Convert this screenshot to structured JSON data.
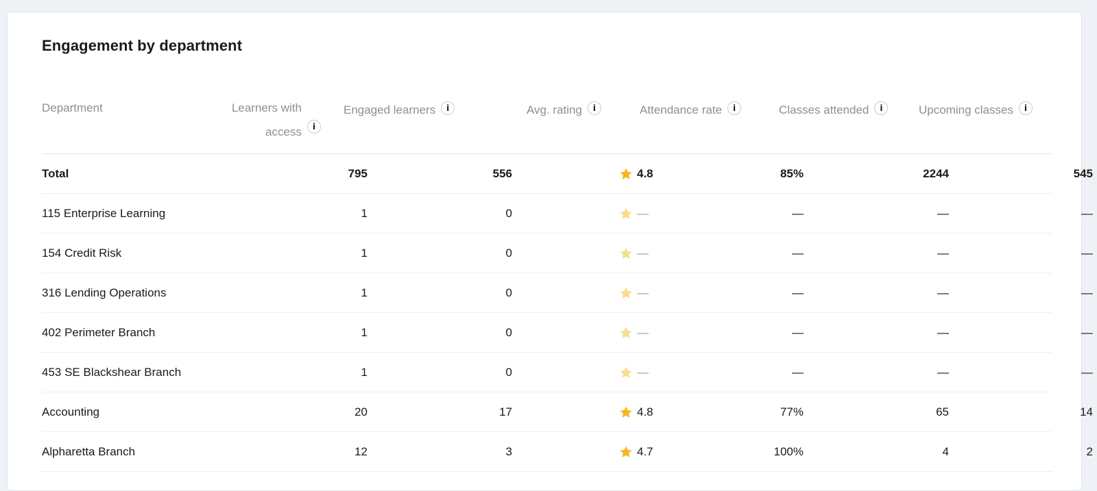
{
  "title": "Engagement by department",
  "columns": {
    "department": "Department",
    "learners_with_access": "Learners with access",
    "engaged_learners": "Engaged learners",
    "avg_rating": "Avg. rating",
    "attendance_rate": "Attendance rate",
    "classes_attended": "Classes attended",
    "upcoming_classes": "Upcoming classes"
  },
  "info_glyph": "i",
  "colors": {
    "star_full": "#f5b823",
    "star_faint": "#f8dc8f",
    "header_text": "#8b8f95"
  },
  "rows": [
    {
      "department": "Total",
      "learners": "795",
      "engaged": "556",
      "rating": "4.8",
      "rated": true,
      "attendance": "85%",
      "classes": "2244",
      "upcoming": "545",
      "total": true
    },
    {
      "department": "115 Enterprise Learning",
      "learners": "1",
      "engaged": "0",
      "rating": "—",
      "rated": false,
      "attendance": "—",
      "classes": "—",
      "upcoming": "—"
    },
    {
      "department": "154 Credit Risk",
      "learners": "1",
      "engaged": "0",
      "rating": "—",
      "rated": false,
      "attendance": "—",
      "classes": "—",
      "upcoming": "—"
    },
    {
      "department": "316 Lending Operations",
      "learners": "1",
      "engaged": "0",
      "rating": "—",
      "rated": false,
      "attendance": "—",
      "classes": "—",
      "upcoming": "—"
    },
    {
      "department": "402 Perimeter Branch",
      "learners": "1",
      "engaged": "0",
      "rating": "—",
      "rated": false,
      "attendance": "—",
      "classes": "—",
      "upcoming": "—"
    },
    {
      "department": "453 SE Blackshear Branch",
      "learners": "1",
      "engaged": "0",
      "rating": "—",
      "rated": false,
      "attendance": "—",
      "classes": "—",
      "upcoming": "—"
    },
    {
      "department": "Accounting",
      "learners": "20",
      "engaged": "17",
      "rating": "4.8",
      "rated": true,
      "attendance": "77%",
      "classes": "65",
      "upcoming": "14"
    },
    {
      "department": "Alpharetta Branch",
      "learners": "12",
      "engaged": "3",
      "rating": "4.7",
      "rated": true,
      "attendance": "100%",
      "classes": "4",
      "upcoming": "2"
    }
  ]
}
